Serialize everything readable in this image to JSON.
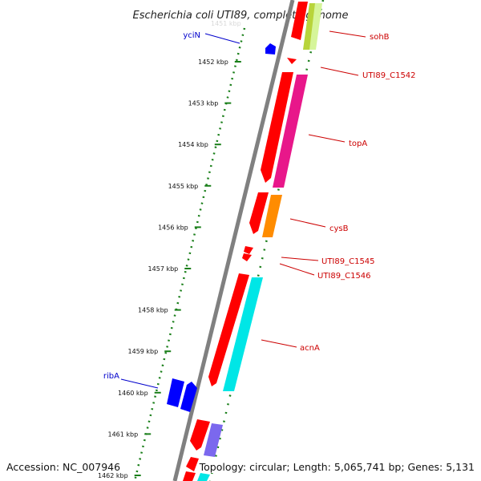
{
  "title": "Escherichia coli UTI89, complete genome",
  "accession": "Accession: NC_007946",
  "topology": "Topology: circular; Length: 5,065,741 bp; Genes: 5,131",
  "colors": {
    "backbone": "#808080",
    "ruler": "#1a7f1a",
    "forward_gene": "#ff0000",
    "label_red": "#cc0000",
    "label_blue": "#0000cc",
    "blue_gene": "#0000ff"
  },
  "ticks": [
    {
      "label": "1452 kbp"
    },
    {
      "label": "1453 kbp"
    },
    {
      "label": "1454 kbp"
    },
    {
      "label": "1455 kbp"
    },
    {
      "label": "1456 kbp"
    },
    {
      "label": "1457 kbp"
    },
    {
      "label": "1458 kbp"
    },
    {
      "label": "1459 kbp"
    },
    {
      "label": "1460 kbp"
    },
    {
      "label": "1461 kbp"
    },
    {
      "label": "1462 kbp"
    }
  ],
  "labels": {
    "yciN": "yciN",
    "sohB": "sohB",
    "UTI89_C1542": "UTI89_C1542",
    "topA": "topA",
    "cysB": "cysB",
    "UTI89_C1545": "UTI89_C1545",
    "UTI89_C1546": "UTI89_C1546",
    "acnA": "acnA",
    "ribA": "ribA"
  }
}
